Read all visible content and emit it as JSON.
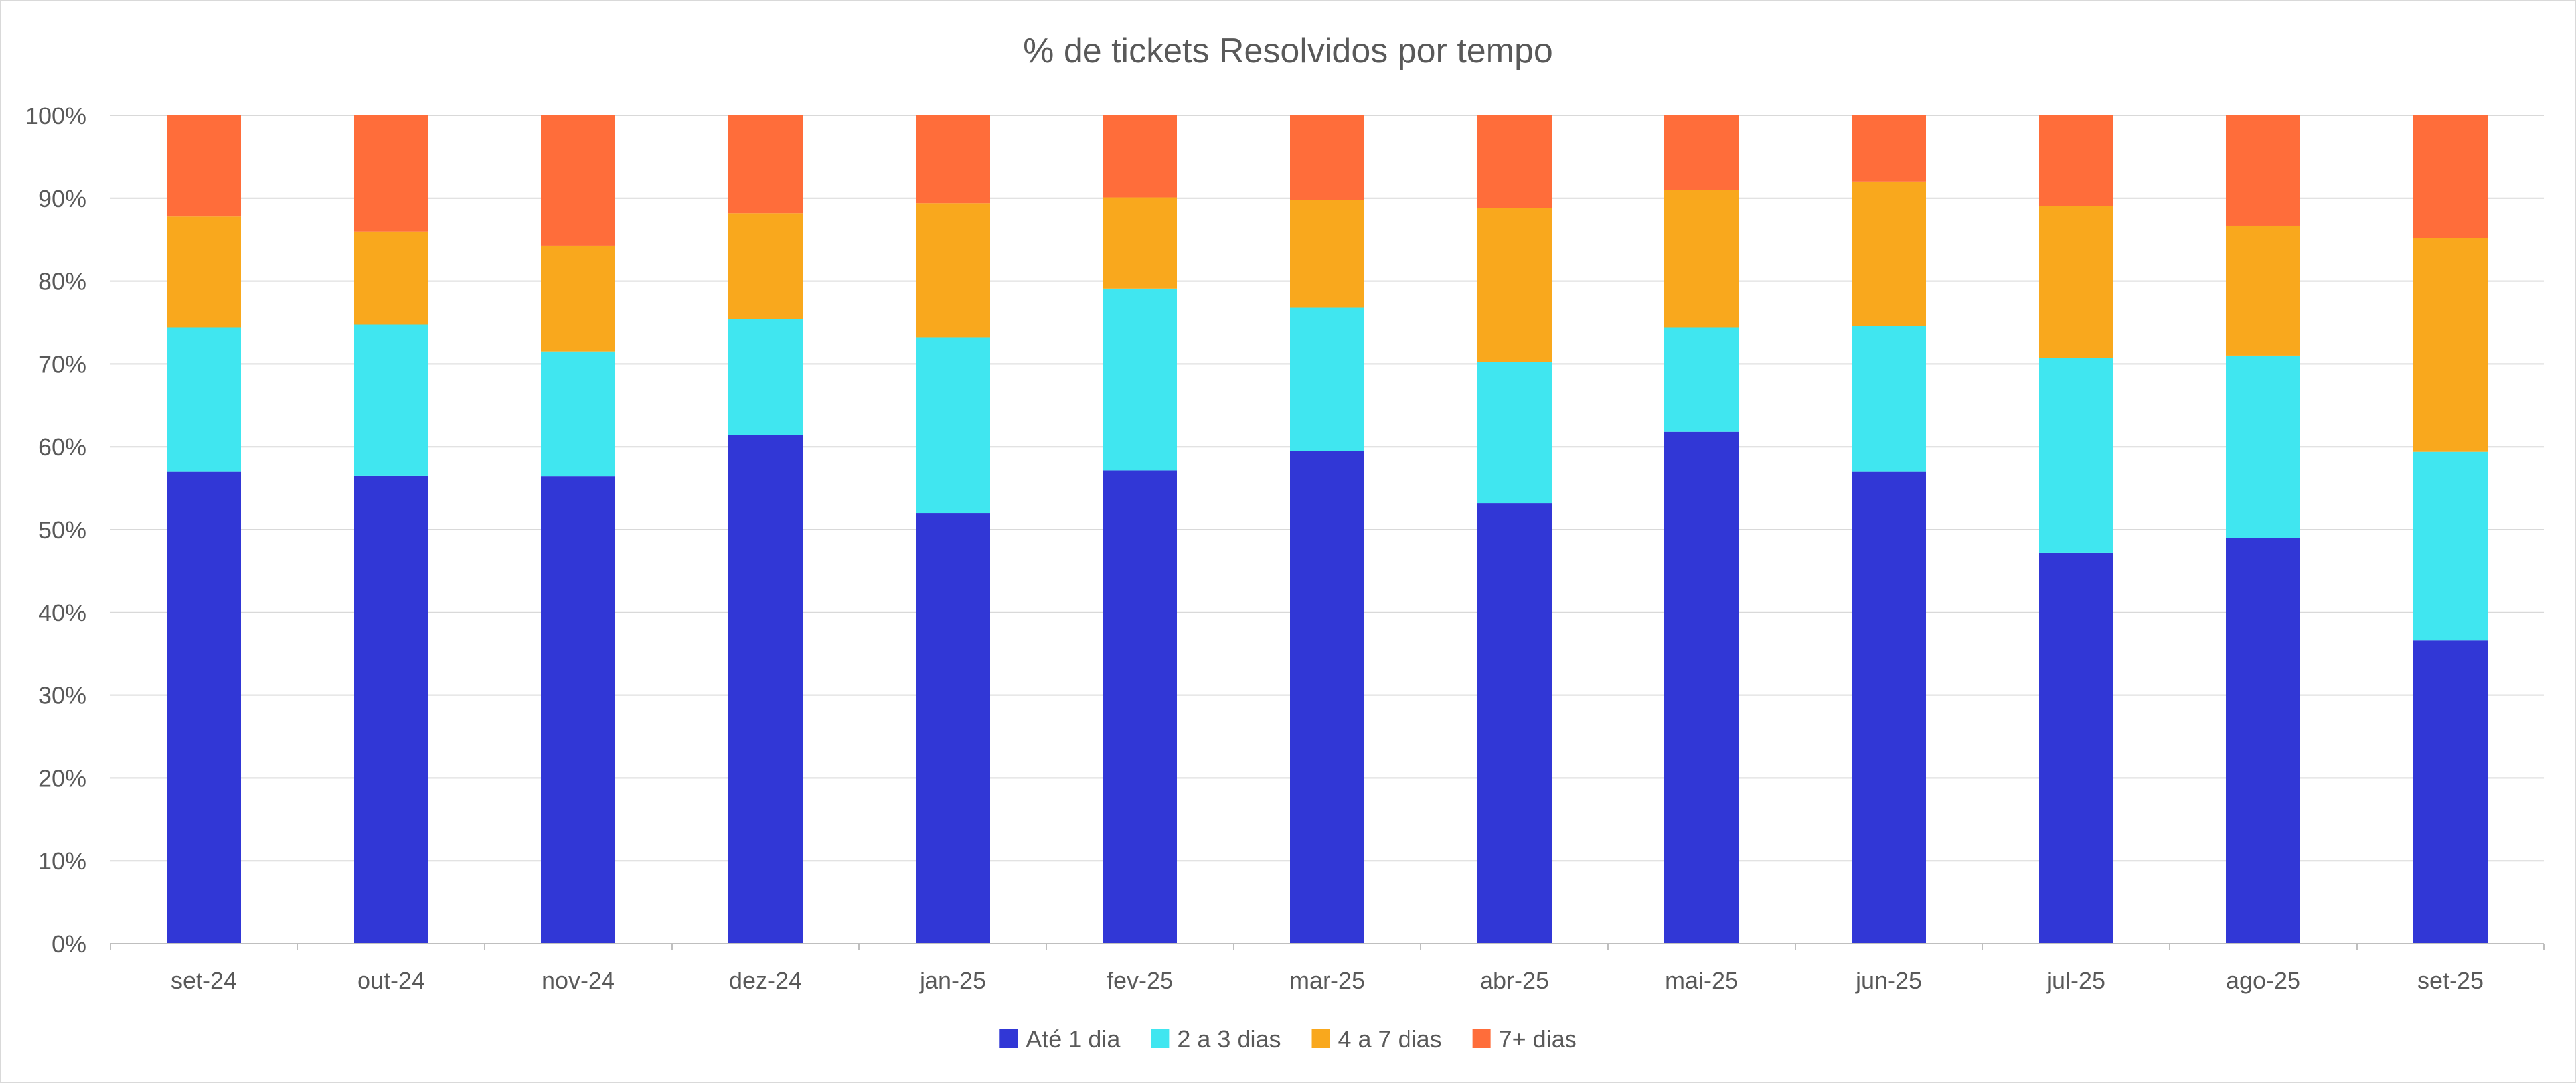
{
  "chart_data": {
    "type": "bar",
    "stacked": true,
    "title": "% de tickets Resolvidos por tempo",
    "xlabel": "",
    "ylabel": "",
    "ylim": [
      0,
      100
    ],
    "y_ticks": [
      "0%",
      "10%",
      "20%",
      "30%",
      "40%",
      "50%",
      "60%",
      "70%",
      "80%",
      "90%",
      "100%"
    ],
    "grid": true,
    "legend_position": "bottom",
    "categories": [
      "set-24",
      "out-24",
      "nov-24",
      "dez-24",
      "jan-25",
      "fev-25",
      "mar-25",
      "abr-25",
      "mai-25",
      "jun-25",
      "jul-25",
      "ago-25",
      "set-25"
    ],
    "series": [
      {
        "name": "Até 1 dia",
        "color": "#3137d6",
        "values": [
          57,
          56.5,
          56.4,
          61.4,
          52,
          57.1,
          59.5,
          53.2,
          61.8,
          57,
          47.2,
          49,
          36.6
        ]
      },
      {
        "name": "2 a 3 dias",
        "color": "#40e6f0",
        "values": [
          17.4,
          18.3,
          15.1,
          14,
          21.2,
          22,
          17.3,
          17,
          12.6,
          17.6,
          23.5,
          22,
          22.8
        ]
      },
      {
        "name": "4 a 7 dias",
        "color": "#f9a81d",
        "values": [
          13.4,
          11.2,
          12.8,
          12.8,
          16.2,
          11,
          13,
          18.6,
          16.6,
          17.4,
          18.4,
          15.7,
          25.8
        ]
      },
      {
        "name": "7+ dias",
        "color": "#ff6d3a",
        "values": [
          12.2,
          14,
          15.7,
          11.8,
          10.6,
          9.9,
          10.2,
          11.2,
          9,
          8,
          10.9,
          13.3,
          14.8
        ]
      }
    ]
  }
}
